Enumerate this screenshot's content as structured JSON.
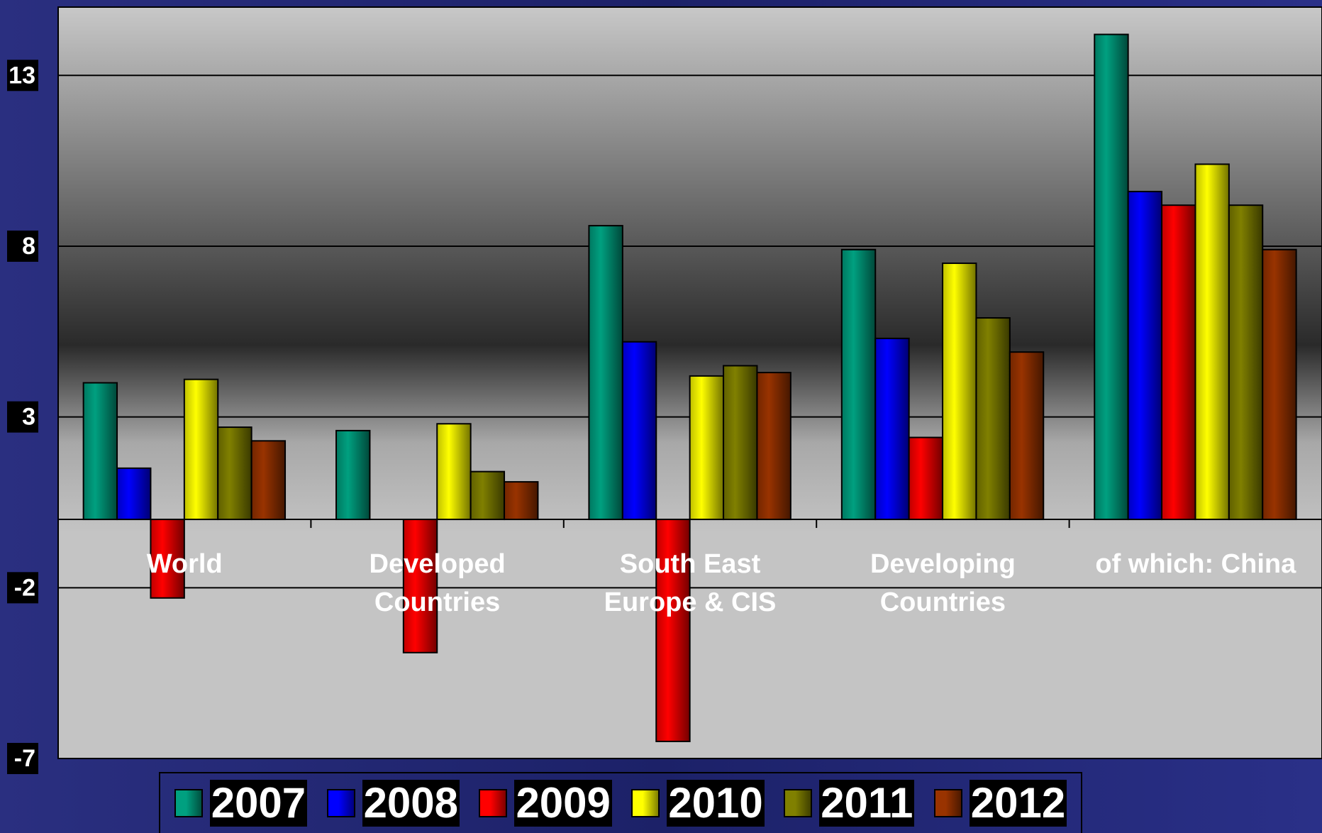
{
  "chart_data": {
    "type": "bar",
    "categories": [
      "World",
      "Developed Countries",
      "South East Europe & CIS",
      "Developing Countries",
      "of which: China"
    ],
    "series": [
      {
        "name": "2007",
        "color": "#00a080",
        "values": [
          4.0,
          2.6,
          8.6,
          7.9,
          14.2
        ]
      },
      {
        "name": "2008",
        "color": "#0000ff",
        "values": [
          1.5,
          0,
          5.2,
          5.3,
          9.6
        ]
      },
      {
        "name": "2009",
        "color": "#ff0000",
        "values": [
          -2.3,
          -3.9,
          -6.5,
          2.4,
          9.2
        ]
      },
      {
        "name": "2010",
        "color": "#ffff00",
        "values": [
          4.1,
          2.8,
          4.2,
          7.5,
          10.4
        ]
      },
      {
        "name": "2011",
        "color": "#808000",
        "values": [
          2.7,
          1.4,
          4.5,
          5.9,
          9.2
        ]
      },
      {
        "name": "2012",
        "color": "#993300",
        "values": [
          2.3,
          1.1,
          4.3,
          4.9,
          7.9
        ]
      }
    ],
    "ylim": [
      -7,
      15
    ],
    "yticks": [
      -7,
      -2,
      3,
      8,
      13
    ],
    "grid": true
  }
}
